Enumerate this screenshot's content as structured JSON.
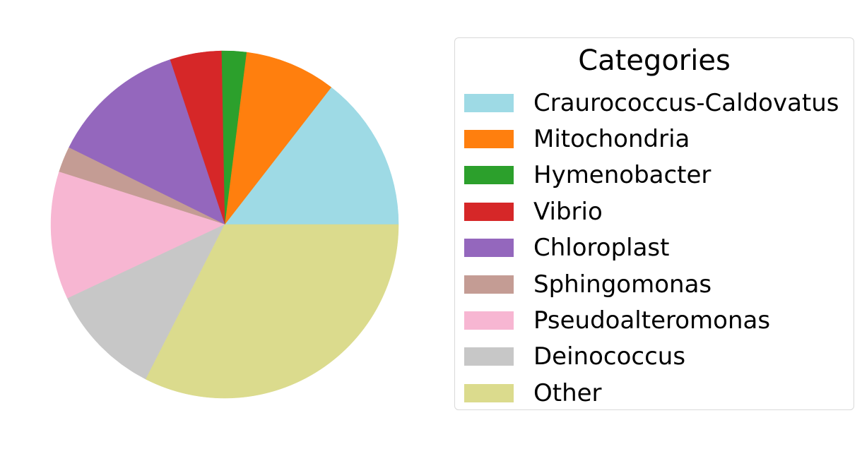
{
  "chart_data": {
    "type": "pie",
    "legend_title": "Categories",
    "legend_placement": "right",
    "start_angle_deg": 0,
    "direction": "counterclockwise",
    "slices": [
      {
        "label": "Craurococcus-Caldovatus",
        "value": 14.5,
        "color": "#9edae5"
      },
      {
        "label": "Mitochondria",
        "value": 8.5,
        "color": "#ff7f0e"
      },
      {
        "label": "Hymenobacter",
        "value": 2.3,
        "color": "#2ca02c"
      },
      {
        "label": "Vibrio",
        "value": 4.8,
        "color": "#d62728"
      },
      {
        "label": "Chloroplast",
        "value": 12.6,
        "color": "#9467bd"
      },
      {
        "label": "Sphingomonas",
        "value": 2.4,
        "color": "#c49c94"
      },
      {
        "label": "Pseudoalteromonas",
        "value": 11.9,
        "color": "#f7b6d2"
      },
      {
        "label": "Deinococcus",
        "value": 10.5,
        "color": "#c7c7c7"
      },
      {
        "label": "Other",
        "value": 32.5,
        "color": "#dbdb8d"
      }
    ]
  }
}
